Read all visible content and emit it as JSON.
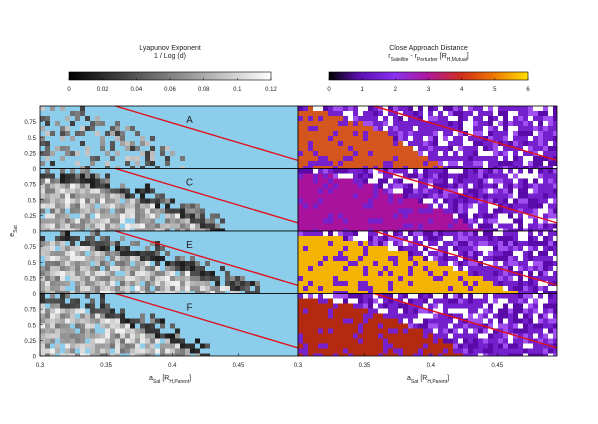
{
  "chart_data": [
    {
      "type": "heatmap",
      "title": "Lyapunov Exponent",
      "subtitle": [
        "1 / Log (d)"
      ],
      "colorbar": {
        "lim": [
          0,
          0.12
        ],
        "ticks": [
          0,
          0.02,
          0.04,
          0.06,
          0.08,
          0.1,
          0.12
        ]
      },
      "panels": [
        "A",
        "C",
        "E",
        "F"
      ],
      "xlim": [
        0.3,
        0.495
      ],
      "xticks": [
        0.3,
        0.35,
        0.4,
        0.45
      ],
      "ylim": [
        0,
        1
      ],
      "yticks": [
        0,
        0.25,
        0.5,
        0.75
      ],
      "x_label": [
        "a",
        "Sat",
        " [R",
        "H,Parent",
        "]"
      ],
      "y_label": [
        "e",
        "Sat"
      ]
    },
    {
      "type": "heatmap",
      "title": "Close Approach Distance",
      "subtitle": [
        "r",
        "Satellite",
        " - r",
        "Perturber",
        " [R",
        "H,Mutual",
        "]"
      ],
      "colorbar": {
        "lim": [
          0,
          6
        ],
        "ticks": [
          0,
          1,
          2,
          3,
          4,
          5,
          6
        ]
      },
      "xlim": [
        0.3,
        0.495
      ],
      "xticks": [
        0.3,
        0.35,
        0.4,
        0.45
      ],
      "ylim": [
        0,
        1
      ],
      "x_label": [
        "a",
        "Sat",
        " [R",
        "H,Parent",
        "]"
      ]
    }
  ]
}
